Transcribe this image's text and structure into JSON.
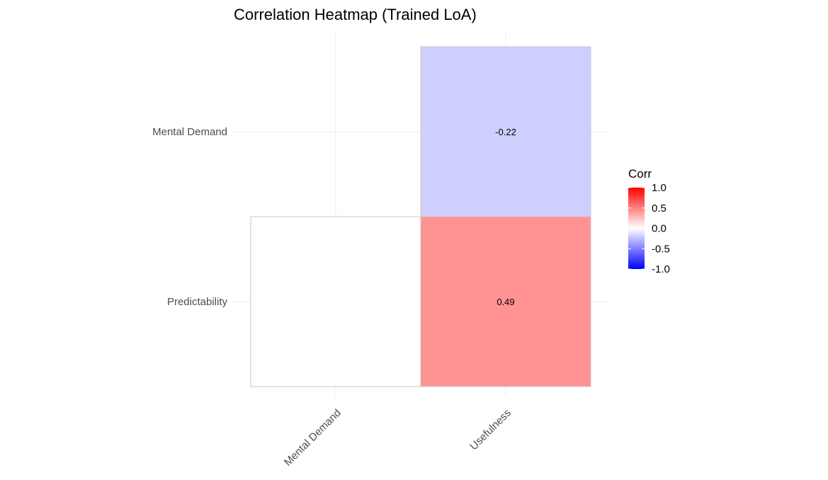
{
  "chart_data": {
    "type": "heatmap",
    "title": "Correlation Heatmap (Trained LoA)",
    "x_categories": [
      "Mental Demand",
      "Usefulness"
    ],
    "y_categories": [
      "Mental Demand",
      "Predictability"
    ],
    "cells": [
      {
        "x": "Usefulness",
        "y": "Mental Demand",
        "value": -0.22,
        "label": "-0.22"
      },
      {
        "x": "Mental Demand",
        "y": "Predictability",
        "value": 0.0,
        "label": ""
      },
      {
        "x": "Usefulness",
        "y": "Predictability",
        "value": 0.49,
        "label": "0.49"
      }
    ],
    "legend": {
      "title": "Corr",
      "placement": "right",
      "range": [
        -1,
        1
      ],
      "ticks": [
        1.0,
        0.5,
        0.0,
        -0.5,
        -1.0
      ],
      "tick_labels": [
        "1.0",
        "0.5",
        "0.0",
        "-0.5",
        "-1.0"
      ],
      "low_color": "#0000ff",
      "mid_color": "#ffffff",
      "high_color": "#ff0000"
    },
    "grid": true
  }
}
